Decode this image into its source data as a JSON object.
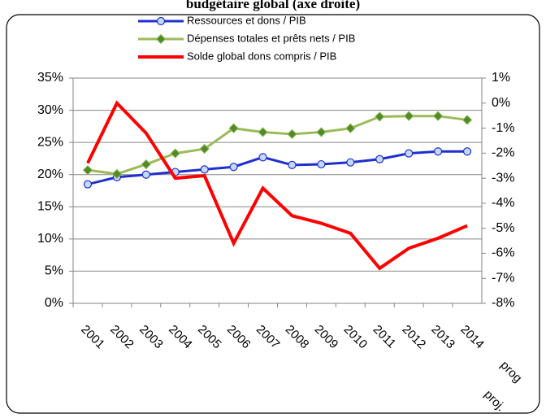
{
  "chart_data": {
    "type": "line",
    "title": "budgétaire global (axe droite)",
    "categories": [
      "2001",
      "2002",
      "2003",
      "2004",
      "2005",
      "2006",
      "2007",
      "2008",
      "2009",
      "2010",
      "2011",
      "2012",
      "2013",
      "2014"
    ],
    "x_notes": [
      "proj.",
      "prog"
    ],
    "series": [
      {
        "name": "Ressources et dons / PIB",
        "color": "#1f2fd0",
        "marker": "circle",
        "values": [
          18.5,
          19.6,
          20.0,
          20.4,
          20.8,
          21.2,
          22.7,
          21.5,
          21.6,
          21.9,
          22.4,
          23.3,
          23.6,
          23.6
        ]
      },
      {
        "name": "Dépenses totales et prêts nets / PIB",
        "color": "#9bbb59",
        "marker": "diamond",
        "values": [
          20.7,
          20.1,
          21.6,
          23.3,
          24.0,
          27.2,
          26.6,
          26.3,
          26.6,
          27.2,
          29.0,
          29.1,
          29.1,
          28.5
        ]
      },
      {
        "name": "Solde global dons compris / PIB",
        "color": "#ff0000",
        "marker": "none",
        "axis": "y2",
        "values": [
          -2.4,
          0.0,
          -1.2,
          -3.0,
          -2.9,
          -5.6,
          -3.4,
          -4.5,
          -4.8,
          -5.2,
          -6.6,
          -5.8,
          -5.4,
          -4.9
        ]
      }
    ],
    "ylim": [
      0,
      35
    ],
    "yticks": [
      {
        "value": 0,
        "label": "0%"
      },
      {
        "value": 5,
        "label": "5%"
      },
      {
        "value": 10,
        "label": "10%"
      },
      {
        "value": 15,
        "label": "15%"
      },
      {
        "value": 20,
        "label": "20%"
      },
      {
        "value": 25,
        "label": "25%"
      },
      {
        "value": 30,
        "label": "30%"
      },
      {
        "value": 35,
        "label": "35%"
      }
    ],
    "y2lim": [
      -8,
      1
    ],
    "y2ticks": [
      {
        "value": -8,
        "label": "-8%"
      },
      {
        "value": -7,
        "label": "-7%"
      },
      {
        "value": -6,
        "label": "-6%"
      },
      {
        "value": -5,
        "label": "-5%"
      },
      {
        "value": -4,
        "label": "-4%"
      },
      {
        "value": -3,
        "label": "-3%"
      },
      {
        "value": -2,
        "label": "-2%"
      },
      {
        "value": -1,
        "label": "-1%"
      },
      {
        "value": 0,
        "label": "0%"
      },
      {
        "value": 1,
        "label": "1%"
      }
    ],
    "grid": true
  }
}
